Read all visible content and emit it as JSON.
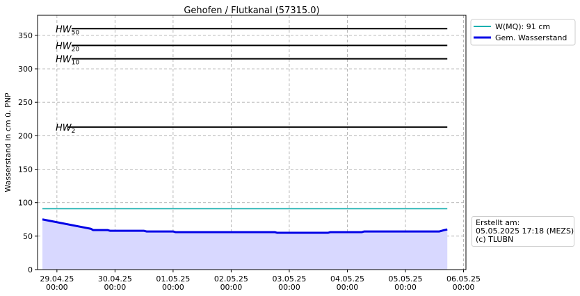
{
  "chart_data": {
    "type": "line",
    "title": "Gehofen / Flutkanal (57315.0)",
    "ylabel": "Wasserstand in cm ü. PNP",
    "xlabel": "",
    "ylim": [
      0,
      380
    ],
    "xlim": [
      "2025-04-28T16:00",
      "2025-05-06T01:00"
    ],
    "y_ticks": [
      0,
      50,
      100,
      150,
      200,
      250,
      300,
      350
    ],
    "x_ticks": [
      {
        "x": "2025-04-29T00:00",
        "label": [
          "29.04.25",
          "00:00"
        ]
      },
      {
        "x": "2025-04-30T00:00",
        "label": [
          "30.04.25",
          "00:00"
        ]
      },
      {
        "x": "2025-05-01T00:00",
        "label": [
          "01.05.25",
          "00:00"
        ]
      },
      {
        "x": "2025-05-02T00:00",
        "label": [
          "02.05.25",
          "00:00"
        ]
      },
      {
        "x": "2025-05-03T00:00",
        "label": [
          "03.05.25",
          "00:00"
        ]
      },
      {
        "x": "2025-05-04T00:00",
        "label": [
          "04.05.25",
          "00:00"
        ]
      },
      {
        "x": "2025-05-05T00:00",
        "label": [
          "05.05.25",
          "00:00"
        ]
      },
      {
        "x": "2025-05-06T00:00",
        "label": [
          "06.05.25",
          "00:00"
        ]
      }
    ],
    "grid": true,
    "legend_position": "top-right",
    "thresholds": [
      {
        "label": "HW",
        "sub": "50",
        "value": 360,
        "color": "#000000"
      },
      {
        "label": "HW",
        "sub": "20",
        "value": 335,
        "color": "#000000"
      },
      {
        "label": "HW",
        "sub": "10",
        "value": 315,
        "color": "#000000"
      },
      {
        "label": "HW",
        "sub": "2",
        "value": 213,
        "color": "#000000"
      }
    ],
    "series": [
      {
        "name": "W(MQ): 91 cm",
        "color": "#1ab0b0",
        "points": [
          {
            "x": "2025-04-28T18:00",
            "y": 91
          },
          {
            "x": "2025-05-05T17:18",
            "y": 91
          }
        ]
      },
      {
        "name": "Gem. Wasserstand",
        "color": "#0000e6",
        "fill": "#d8d8ff",
        "points": [
          {
            "x": "2025-04-28T18:00",
            "y": 75
          },
          {
            "x": "2025-04-29T14:00",
            "y": 61
          },
          {
            "x": "2025-04-29T15:00",
            "y": 59
          },
          {
            "x": "2025-04-29T21:00",
            "y": 59
          },
          {
            "x": "2025-04-29T22:00",
            "y": 58
          },
          {
            "x": "2025-04-30T12:00",
            "y": 58
          },
          {
            "x": "2025-04-30T13:00",
            "y": 57
          },
          {
            "x": "2025-05-01T00:00",
            "y": 57
          },
          {
            "x": "2025-05-01T01:00",
            "y": 56
          },
          {
            "x": "2025-05-02T18:00",
            "y": 56
          },
          {
            "x": "2025-05-02T19:00",
            "y": 55
          },
          {
            "x": "2025-05-03T16:00",
            "y": 55
          },
          {
            "x": "2025-05-03T17:00",
            "y": 56
          },
          {
            "x": "2025-05-04T06:00",
            "y": 56
          },
          {
            "x": "2025-05-04T07:00",
            "y": 57
          },
          {
            "x": "2025-05-05T14:00",
            "y": 57
          },
          {
            "x": "2025-05-05T16:00",
            "y": 59
          },
          {
            "x": "2025-05-05T17:18",
            "y": 60
          }
        ]
      }
    ]
  },
  "info_box": {
    "line1": "Erstellt am:",
    "line2": "05.05.2025 17:18 (MEZS)",
    "line3": "(c) TLUBN"
  }
}
